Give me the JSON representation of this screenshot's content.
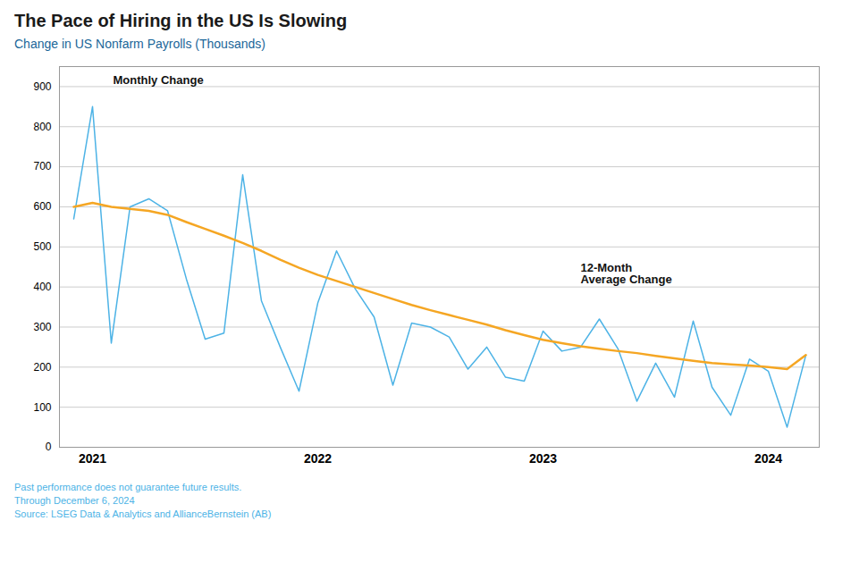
{
  "chart_data": {
    "type": "line",
    "title": "The Pace of Hiring in the US Is Slowing",
    "subtitle": "Change in US Nonfarm Payrolls (Thousands)",
    "title_color": "#1a1a1a",
    "subtitle_color": "#1a6699",
    "footnotes": [
      "Past performance does not guarantee future results.",
      "Through December 6, 2024",
      "Source: LSEG Data & Analytics and AllianceBernstein (AB)"
    ],
    "footnote_color": "#4db3e6",
    "categories": [
      null,
      "2021",
      null,
      null,
      null,
      null,
      null,
      null,
      null,
      null,
      null,
      null,
      null,
      "2022",
      null,
      null,
      null,
      null,
      null,
      null,
      null,
      null,
      null,
      null,
      null,
      "2023",
      null,
      null,
      null,
      null,
      null,
      null,
      null,
      null,
      null,
      null,
      null,
      "2024",
      null,
      null
    ],
    "series": [
      {
        "name": "Monthly Change",
        "color": "#4db3e6",
        "values": [
          570,
          850,
          260,
          600,
          620,
          590,
          420,
          270,
          285,
          680,
          365,
          250,
          140,
          360,
          490,
          395,
          325,
          155,
          310,
          300,
          275,
          195,
          250,
          175,
          165,
          290,
          240,
          250,
          320,
          245,
          115,
          210,
          125,
          315,
          150,
          80,
          220,
          190,
          50,
          230
        ]
      },
      {
        "name": "12-Month\nAverage Change",
        "color": "#f5a623",
        "values": [
          600,
          610,
          600,
          595,
          590,
          580,
          562,
          545,
          528,
          510,
          490,
          468,
          448,
          430,
          415,
          400,
          385,
          370,
          355,
          342,
          330,
          318,
          306,
          292,
          280,
          268,
          260,
          252,
          246,
          240,
          235,
          228,
          222,
          216,
          210,
          207,
          204,
          200,
          195,
          230
        ]
      }
    ],
    "ylim": [
      0,
      950
    ],
    "yticks": [
      0,
      100,
      200,
      300,
      400,
      500,
      600,
      700,
      800,
      900
    ],
    "grid": true
  }
}
